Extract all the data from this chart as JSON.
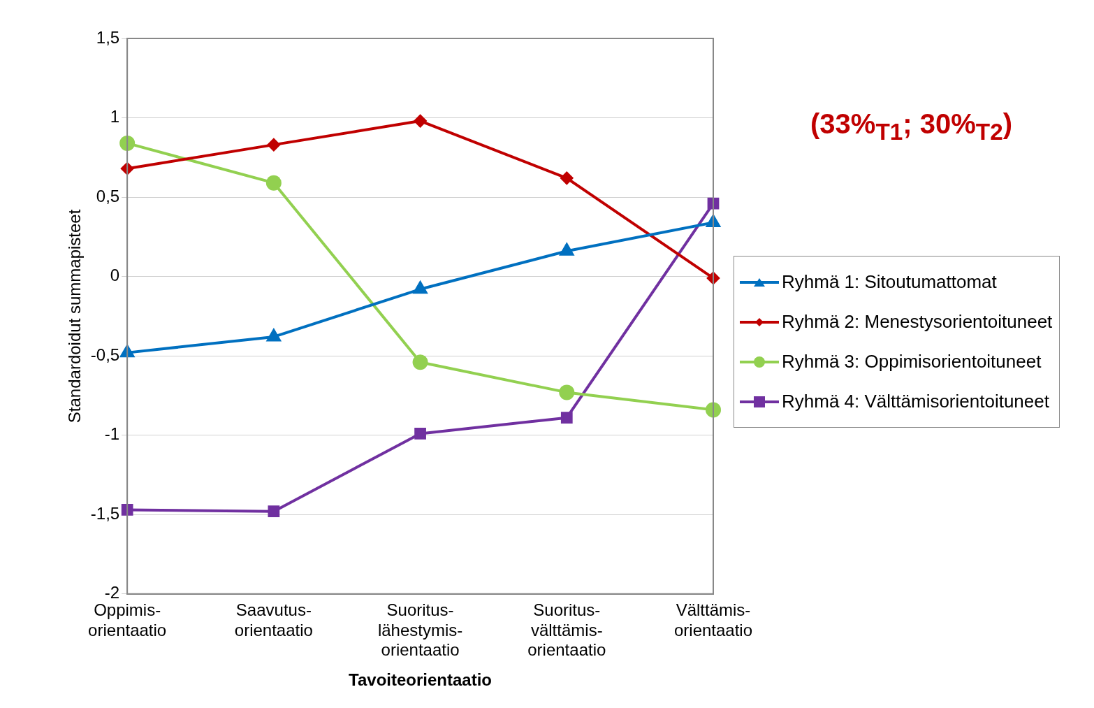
{
  "chart_data": {
    "type": "line",
    "xlabel": "Tavoiteorientaatio",
    "ylabel": "Standardoidut summapisteet",
    "categories": [
      "Oppimis-orientaatio",
      "Saavutus-orientaatio",
      "Suoritus-lähestymis-orientaatio",
      "Suoritus-välttämis-orientaatio",
      "Välttämis-orientaatio"
    ],
    "series": [
      {
        "name": "Ryhmä 1: Sitoutumattomat",
        "color": "#0070c0",
        "marker": "triangle",
        "values": [
          -0.48,
          -0.38,
          -0.08,
          0.16,
          0.34
        ]
      },
      {
        "name": "Ryhmä 2: Menestysorientoituneet",
        "color": "#c00000",
        "marker": "diamond",
        "values": [
          0.68,
          0.83,
          0.98,
          0.62,
          -0.01
        ]
      },
      {
        "name": "Ryhmä 3: Oppimisorientoituneet",
        "color": "#92d050",
        "marker": "circle",
        "values": [
          0.84,
          0.59,
          -0.54,
          -0.73,
          -0.84
        ]
      },
      {
        "name": "Ryhmä 4: Välttämisorientoituneet",
        "color": "#7030a0",
        "marker": "square",
        "values": [
          -1.47,
          -1.48,
          -0.99,
          -0.89,
          0.46
        ]
      }
    ],
    "ylim": [
      -2,
      1.5
    ],
    "yticks": [
      -2,
      {
        "value": -1.5,
        "label": "-1,5"
      },
      -1,
      {
        "value": -0.5,
        "label": "-0,5"
      },
      0,
      {
        "value": 0.5,
        "label": "0,5"
      },
      1,
      {
        "value": 1.5,
        "label": "1,5"
      }
    ],
    "grid": "y",
    "legend": "right",
    "line_style": "solid",
    "annotations": [
      "(33%$_{T1}$; 30%$_{T2}$)"
    ]
  }
}
